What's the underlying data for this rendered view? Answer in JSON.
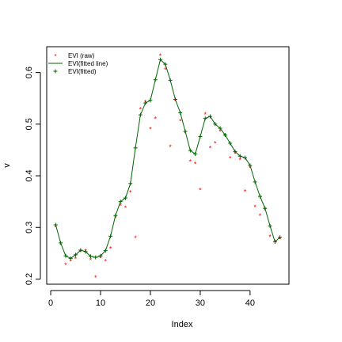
{
  "chart_data": {
    "type": "line",
    "xlabel": "Index",
    "ylabel": "v",
    "xlim": [
      -0.8,
      47.8
    ],
    "ylim": [
      0.19,
      0.65
    ],
    "x_ticks": [
      0,
      10,
      20,
      30,
      40
    ],
    "y_ticks": [
      0.2,
      0.3,
      0.4,
      0.5,
      0.6
    ],
    "grid": false,
    "legend_position": "top-left",
    "legend": [
      {
        "label": "EVI (raw)",
        "symbol": "star",
        "color": "#ff0000"
      },
      {
        "label": "EVI(fitted line)",
        "symbol": "line",
        "color": "#006400"
      },
      {
        "label": "EVI(fitted)",
        "symbol": "plus",
        "color": "#006400"
      }
    ],
    "series": [
      {
        "name": "EVI (raw)",
        "mark": "star",
        "color": "#ff0000",
        "x": [
          1,
          2,
          3,
          4,
          5,
          6,
          7,
          8,
          9,
          10,
          11,
          12,
          13,
          14,
          15,
          16,
          17,
          18,
          19,
          20,
          21,
          22,
          23,
          24,
          25,
          26,
          27,
          28,
          29,
          30,
          31,
          32,
          33,
          34,
          35,
          36,
          37,
          38,
          39,
          40,
          41,
          42,
          43,
          44,
          45,
          46
        ],
        "values": [
          0.303,
          0.27,
          0.23,
          0.237,
          0.241,
          0.255,
          0.257,
          0.239,
          0.205,
          0.243,
          0.237,
          0.261,
          0.32,
          0.345,
          0.34,
          0.37,
          0.282,
          0.531,
          0.545,
          0.493,
          0.513,
          0.635,
          0.608,
          0.458,
          0.548,
          0.508,
          0.485,
          0.43,
          0.425,
          0.375,
          0.521,
          0.456,
          0.465,
          0.488,
          0.48,
          0.436,
          0.445,
          0.433,
          0.372,
          0.418,
          0.342,
          0.325,
          0.336,
          0.284,
          0.274,
          0.28
        ]
      },
      {
        "name": "EVI(fitted line)",
        "mark": "line",
        "color": "#006400",
        "x": [
          1,
          2,
          3,
          4,
          5,
          6,
          7,
          8,
          9,
          10,
          11,
          12,
          13,
          14,
          15,
          16,
          17,
          18,
          19,
          20,
          21,
          22,
          23,
          24,
          25,
          26,
          27,
          28,
          29,
          30,
          31,
          32,
          33,
          34,
          35,
          36,
          37,
          38,
          39,
          40,
          41,
          42,
          43,
          44,
          45,
          46
        ],
        "values": [
          0.305,
          0.27,
          0.245,
          0.24,
          0.247,
          0.256,
          0.253,
          0.244,
          0.242,
          0.245,
          0.255,
          0.283,
          0.323,
          0.35,
          0.357,
          0.385,
          0.454,
          0.518,
          0.541,
          0.546,
          0.586,
          0.625,
          0.616,
          0.585,
          0.548,
          0.522,
          0.486,
          0.449,
          0.442,
          0.476,
          0.511,
          0.515,
          0.5,
          0.492,
          0.479,
          0.463,
          0.447,
          0.438,
          0.435,
          0.42,
          0.388,
          0.36,
          0.337,
          0.303,
          0.272,
          0.281
        ]
      },
      {
        "name": "EVI(fitted)",
        "mark": "plus",
        "color": "#006400",
        "x": [
          1,
          2,
          3,
          4,
          5,
          6,
          7,
          8,
          9,
          10,
          11,
          12,
          13,
          14,
          15,
          16,
          17,
          18,
          19,
          20,
          21,
          22,
          23,
          24,
          25,
          26,
          27,
          28,
          29,
          30,
          31,
          32,
          33,
          34,
          35,
          36,
          37,
          38,
          39,
          40,
          41,
          42,
          43,
          44,
          45,
          46
        ],
        "values": [
          0.305,
          0.27,
          0.245,
          0.24,
          0.247,
          0.256,
          0.253,
          0.244,
          0.242,
          0.245,
          0.255,
          0.283,
          0.323,
          0.35,
          0.357,
          0.385,
          0.454,
          0.518,
          0.541,
          0.546,
          0.586,
          0.625,
          0.616,
          0.585,
          0.548,
          0.522,
          0.486,
          0.449,
          0.442,
          0.476,
          0.511,
          0.515,
          0.5,
          0.492,
          0.479,
          0.463,
          0.447,
          0.438,
          0.435,
          0.42,
          0.388,
          0.36,
          0.337,
          0.303,
          0.272,
          0.281
        ]
      }
    ]
  }
}
